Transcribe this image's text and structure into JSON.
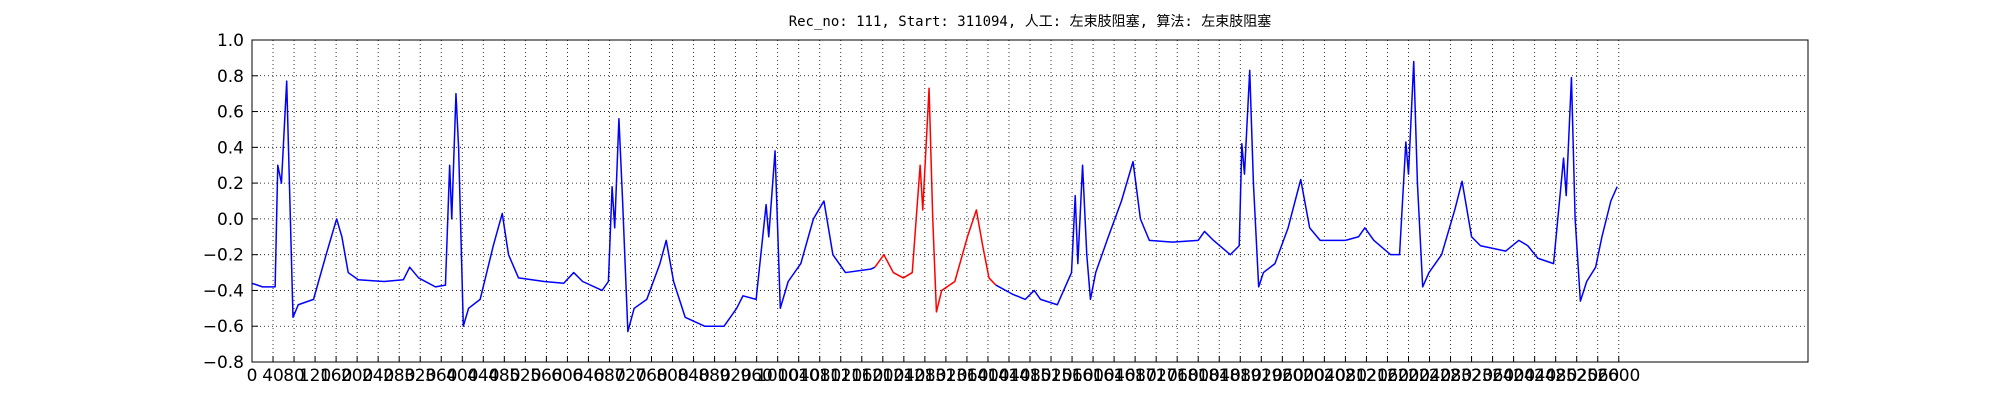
{
  "chart_data": {
    "type": "line",
    "title": "Rec_no: 111, Start: 311094, 人工: 左束肢阻塞, 算法: 左束肢阻塞",
    "xlim": [
      0,
      2960
    ],
    "ylim": [
      -0.8,
      1.0
    ],
    "xticks": [
      0,
      40,
      80,
      120,
      160,
      200,
      240,
      280,
      320,
      360,
      400,
      440,
      480,
      520,
      560,
      600,
      640,
      680,
      720,
      760,
      800,
      840,
      880,
      920,
      960,
      1000,
      1040,
      1080,
      1120,
      1160,
      1200,
      1240,
      1280,
      1320,
      1360,
      1400,
      1440,
      1480,
      1520,
      1560,
      1600,
      1640,
      1680,
      1720,
      1760,
      1800,
      1840,
      1880,
      1920,
      1960,
      2000,
      2040,
      2080,
      2120,
      2160,
      2200,
      2240,
      2280,
      2320,
      2360,
      2400,
      2440,
      2480,
      2520,
      2560,
      2600
    ],
    "yticks": [
      {
        "value": -0.8,
        "label": "−0.8"
      },
      {
        "value": -0.6,
        "label": "−0.6"
      },
      {
        "value": -0.4,
        "label": "−0.4"
      },
      {
        "value": -0.2,
        "label": "−0.2"
      },
      {
        "value": 0.0,
        "label": "0.0"
      },
      0.2,
      0.4,
      0.6,
      0.8,
      {
        "value": 1.0,
        "label": "1.0"
      }
    ],
    "grid": true,
    "series": [
      {
        "color": "#0000ff",
        "x": [
          0,
          20,
          44,
          49,
          56,
          66,
          78,
          88,
          117,
          141,
          161,
          171,
          183,
          202,
          251,
          288,
          300,
          317,
          349,
          368,
          376,
          380,
          388,
          393,
          402,
          412,
          434,
          459,
          476,
          488,
          507,
          556,
          593,
          612,
          629,
          666,
          678,
          685,
          690,
          698,
          705,
          715,
          727,
          751,
          776,
          788,
          802,
          824,
          861,
          898,
          922,
          934,
          959,
          978,
          983,
          995,
          1005,
          1020,
          1044,
          1068,
          1088,
          1105,
          1129,
          1178,
          1185
        ],
        "values": [
          -0.36,
          -0.38,
          -0.38,
          0.3,
          0.2,
          0.77,
          -0.55,
          -0.48,
          -0.45,
          -0.2,
          0.0,
          -0.1,
          -0.3,
          -0.34,
          -0.35,
          -0.34,
          -0.27,
          -0.33,
          -0.38,
          -0.37,
          0.3,
          0.0,
          0.7,
          0.4,
          -0.6,
          -0.5,
          -0.45,
          -0.15,
          0.03,
          -0.2,
          -0.33,
          -0.35,
          -0.36,
          -0.3,
          -0.35,
          -0.4,
          -0.35,
          0.18,
          -0.05,
          0.56,
          0.1,
          -0.63,
          -0.5,
          -0.45,
          -0.25,
          -0.12,
          -0.35,
          -0.55,
          -0.6,
          -0.6,
          -0.5,
          -0.43,
          -0.45,
          0.08,
          -0.1,
          0.38,
          -0.5,
          -0.35,
          -0.25,
          0.0,
          0.1,
          -0.2,
          -0.3,
          -0.28,
          -0.27
        ]
      },
      {
        "color": "#ff0000",
        "x": [
          1185,
          1202,
          1220,
          1239,
          1256,
          1271,
          1276,
          1288,
          1295,
          1302,
          1312,
          1337,
          1361,
          1378,
          1390,
          1402,
          1415
        ],
        "values": [
          -0.27,
          -0.2,
          -0.3,
          -0.33,
          -0.3,
          0.3,
          0.05,
          0.73,
          0.0,
          -0.52,
          -0.4,
          -0.35,
          -0.1,
          0.05,
          -0.15,
          -0.33,
          -0.37
        ]
      },
      {
        "color": "#0000ff",
        "x": [
          1415,
          1446,
          1471,
          1488,
          1500,
          1532,
          1544,
          1559,
          1566,
          1571,
          1580,
          1588,
          1595,
          1605,
          1629,
          1654,
          1676,
          1690,
          1707,
          1751,
          1800,
          1812,
          1829,
          1861,
          1878,
          1883,
          1888,
          1898,
          1905,
          1915,
          1924,
          1946,
          1971,
          1995,
          2012,
          2032,
          2080,
          2105,
          2117,
          2134,
          2166,
          2183,
          2195,
          2200,
          2210,
          2217,
          2227,
          2239,
          2263,
          2288,
          2302,
          2320,
          2337,
          2385,
          2410,
          2427,
          2446,
          2476,
          2495,
          2500,
          2510,
          2517,
          2527,
          2539,
          2556,
          2568,
          2585,
          2597
        ],
        "values": [
          -0.37,
          -0.42,
          -0.45,
          -0.4,
          -0.45,
          -0.48,
          -0.4,
          -0.3,
          0.13,
          -0.25,
          0.3,
          -0.2,
          -0.45,
          -0.3,
          -0.1,
          0.1,
          0.32,
          0.0,
          -0.12,
          -0.13,
          -0.12,
          -0.07,
          -0.12,
          -0.2,
          -0.15,
          0.42,
          0.25,
          0.83,
          0.2,
          -0.38,
          -0.3,
          -0.25,
          -0.05,
          0.22,
          -0.05,
          -0.12,
          -0.12,
          -0.1,
          -0.05,
          -0.12,
          -0.2,
          -0.2,
          0.43,
          0.25,
          0.88,
          0.2,
          -0.38,
          -0.3,
          -0.2,
          0.05,
          0.21,
          -0.1,
          -0.15,
          -0.18,
          -0.12,
          -0.15,
          -0.22,
          -0.25,
          0.34,
          0.13,
          0.79,
          0.0,
          -0.46,
          -0.35,
          -0.27,
          -0.1,
          0.1,
          0.18
        ]
      }
    ]
  }
}
